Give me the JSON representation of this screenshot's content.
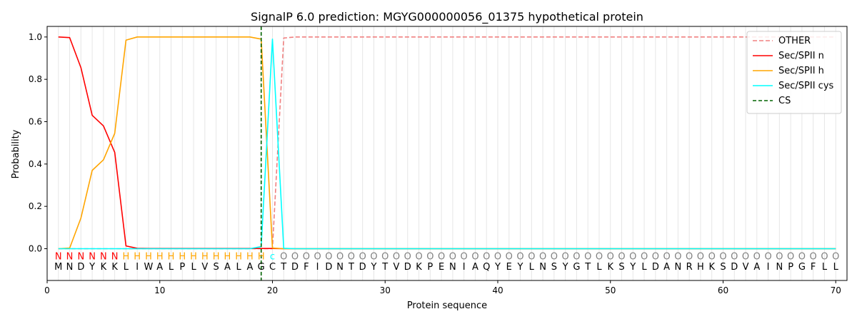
{
  "chart_data": {
    "type": "line",
    "title": "SignalP 6.0 prediction: MGYG000000056_01375 hypothetical protein",
    "xlabel": "Protein sequence",
    "ylabel": "Probability",
    "xlim": [
      0,
      71
    ],
    "ylim": [
      -0.15,
      1.05
    ],
    "xticks": [
      0,
      10,
      20,
      30,
      40,
      50,
      60,
      70
    ],
    "yticks": [
      "0.0",
      "0.2",
      "0.4",
      "0.6",
      "0.8",
      "1.0"
    ],
    "grid": "vertical lines at each residue",
    "legend_position": "top-right",
    "sequence": [
      "M",
      "N",
      "D",
      "Y",
      "K",
      "K",
      "L",
      "I",
      "W",
      "A",
      "L",
      "P",
      "L",
      "V",
      "S",
      "A",
      "L",
      "A",
      "G",
      "C",
      "T",
      "D",
      "F",
      "I",
      "D",
      "N",
      "T",
      "D",
      "Y",
      "T",
      "V",
      "D",
      "K",
      "P",
      "E",
      "N",
      "I",
      "A",
      "Q",
      "Y",
      "E",
      "Y",
      "L",
      "N",
      "S",
      "Y",
      "G",
      "T",
      "L",
      "K",
      "S",
      "Y",
      "L",
      "D",
      "A",
      "N",
      "R",
      "H",
      "K",
      "S",
      "D",
      "V",
      "A",
      "I",
      "N",
      "P",
      "G",
      "F",
      "L",
      "L"
    ],
    "labels": [
      "N",
      "N",
      "N",
      "N",
      "N",
      "N",
      "H",
      "H",
      "H",
      "H",
      "H",
      "H",
      "H",
      "H",
      "H",
      "H",
      "H",
      "H",
      "H",
      "c",
      "O",
      "O",
      "O",
      "O",
      "O",
      "O",
      "O",
      "O",
      "O",
      "O",
      "O",
      "O",
      "O",
      "O",
      "O",
      "O",
      "O",
      "O",
      "O",
      "O",
      "O",
      "O",
      "O",
      "O",
      "O",
      "O",
      "O",
      "O",
      "O",
      "O",
      "O",
      "O",
      "O",
      "O",
      "O",
      "O",
      "O",
      "O",
      "O",
      "O",
      "O",
      "O",
      "O",
      "O",
      "O",
      "O",
      "O",
      "O",
      "O",
      "O"
    ],
    "label_colors": {
      "N": "#ff0000",
      "H": "#ffa500",
      "c": "#00ffff",
      "O": "#808080"
    },
    "series": [
      {
        "name": "OTHER",
        "color": "#f08080",
        "dash": "dashed",
        "values": [
          0,
          0,
          0,
          0,
          0,
          0,
          0,
          0,
          0,
          0,
          0,
          0,
          0,
          0,
          0,
          0,
          0,
          0,
          0,
          0,
          0.995,
          1,
          1,
          1,
          1,
          1,
          1,
          1,
          1,
          1,
          1,
          1,
          1,
          1,
          1,
          1,
          1,
          1,
          1,
          1,
          1,
          1,
          1,
          1,
          1,
          1,
          1,
          1,
          1,
          1,
          1,
          1,
          1,
          1,
          1,
          1,
          1,
          1,
          1,
          1,
          1,
          1,
          1,
          1,
          1,
          1,
          1,
          1,
          1,
          1
        ]
      },
      {
        "name": "Sec/SPII n",
        "color": "#ff0000",
        "dash": "solid",
        "values": [
          1.0,
          0.997,
          0.855,
          0.63,
          0.58,
          0.455,
          0.013,
          0.002,
          0.001,
          0.001,
          0.001,
          0.001,
          0.001,
          0.001,
          0.001,
          0.001,
          0.001,
          0.001,
          0.001,
          0.001,
          0,
          0,
          0,
          0,
          0,
          0,
          0,
          0,
          0,
          0,
          0,
          0,
          0,
          0,
          0,
          0,
          0,
          0,
          0,
          0,
          0,
          0,
          0,
          0,
          0,
          0,
          0,
          0,
          0,
          0,
          0,
          0,
          0,
          0,
          0,
          0,
          0,
          0,
          0,
          0,
          0,
          0,
          0,
          0,
          0,
          0,
          0,
          0,
          0,
          0
        ]
      },
      {
        "name": "Sec/SPII h",
        "color": "#ffa500",
        "dash": "solid",
        "values": [
          0.0,
          0.003,
          0.145,
          0.37,
          0.42,
          0.545,
          0.985,
          1.0,
          1.0,
          1.0,
          1.0,
          1.0,
          1.0,
          1.0,
          1.0,
          1.0,
          1.0,
          1.0,
          0.99,
          0.003,
          0,
          0,
          0,
          0,
          0,
          0,
          0,
          0,
          0,
          0,
          0,
          0,
          0,
          0,
          0,
          0,
          0,
          0,
          0,
          0,
          0,
          0,
          0,
          0,
          0,
          0,
          0,
          0,
          0,
          0,
          0,
          0,
          0,
          0,
          0,
          0,
          0,
          0,
          0,
          0,
          0,
          0,
          0,
          0,
          0,
          0,
          0,
          0,
          0,
          0
        ]
      },
      {
        "name": "Sec/SPII cys",
        "color": "#00ffff",
        "dash": "solid",
        "values": [
          0,
          0,
          0,
          0,
          0,
          0,
          0,
          0,
          0,
          0,
          0,
          0,
          0,
          0,
          0,
          0,
          0,
          0,
          0.01,
          0.99,
          0.002,
          0,
          0,
          0,
          0,
          0,
          0,
          0,
          0,
          0,
          0,
          0,
          0,
          0,
          0,
          0,
          0,
          0,
          0,
          0,
          0,
          0,
          0,
          0,
          0,
          0,
          0,
          0,
          0,
          0,
          0,
          0,
          0,
          0,
          0,
          0,
          0,
          0,
          0,
          0,
          0,
          0,
          0,
          0,
          0,
          0,
          0,
          0,
          0,
          0
        ]
      }
    ],
    "cleavage_site": {
      "name": "CS",
      "color": "#006400",
      "x": 19
    }
  }
}
